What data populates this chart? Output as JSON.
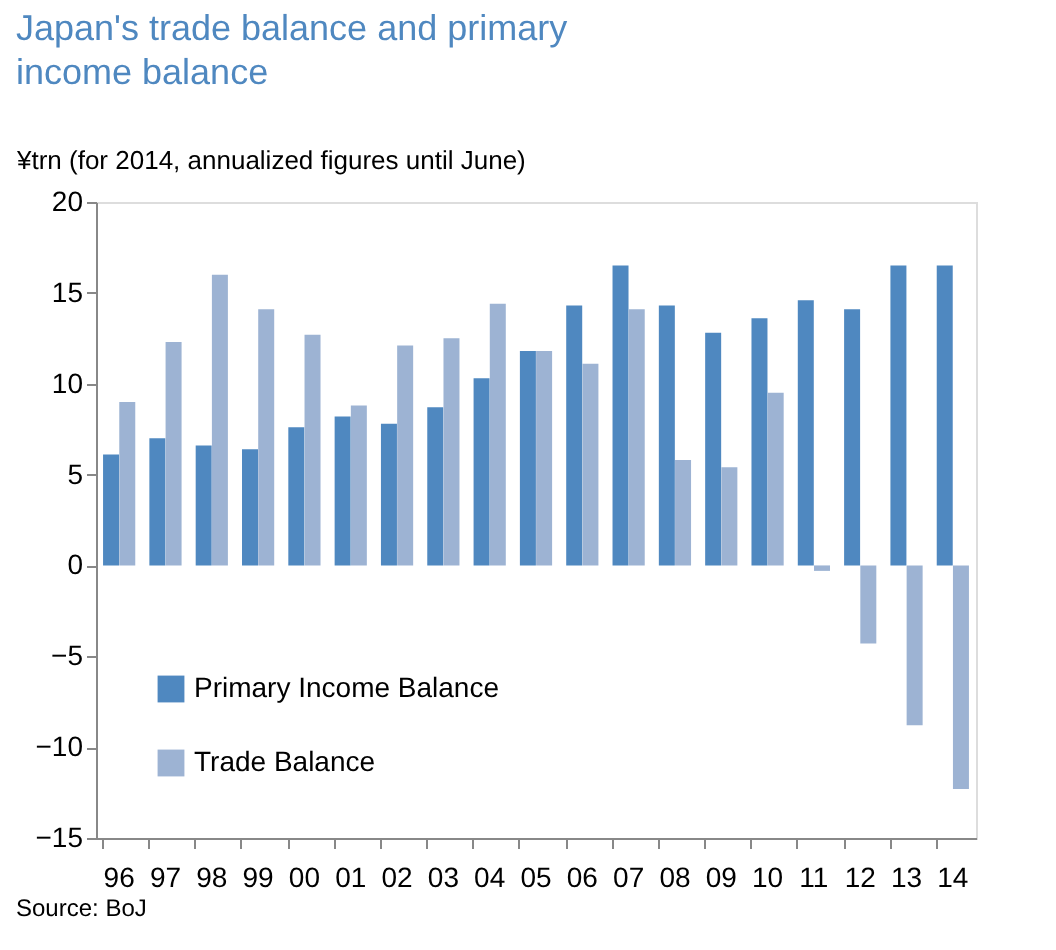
{
  "chart_data": {
    "type": "bar",
    "title": "Japan's trade balance and primary income balance",
    "ylabel": "¥trn (for 2014, annualized figures until June)",
    "categories": [
      "96",
      "97",
      "98",
      "99",
      "00",
      "01",
      "02",
      "03",
      "04",
      "05",
      "06",
      "07",
      "08",
      "09",
      "10",
      "11",
      "12",
      "13",
      "14"
    ],
    "series": [
      {
        "name": "Primary Income Balance",
        "color": "#4f88c0",
        "values": [
          6.1,
          7.0,
          6.6,
          6.4,
          7.6,
          8.2,
          7.8,
          8.7,
          10.3,
          11.8,
          14.3,
          16.5,
          14.3,
          12.8,
          13.6,
          14.6,
          14.1,
          16.5,
          16.5
        ]
      },
      {
        "name": "Trade Balance",
        "color": "#9db3d3",
        "values": [
          9.0,
          12.3,
          16.0,
          14.1,
          12.7,
          8.8,
          12.1,
          12.5,
          14.4,
          11.8,
          11.1,
          14.1,
          5.8,
          5.4,
          9.5,
          -0.3,
          -4.3,
          -8.8,
          -12.3
        ]
      }
    ],
    "ylim": [
      -15,
      20
    ],
    "yticks": [
      -15,
      -10,
      -5,
      0,
      5,
      10,
      15,
      20
    ],
    "grid": false,
    "legend": "bottom left",
    "annotations": [
      "Source: BoJ"
    ]
  }
}
